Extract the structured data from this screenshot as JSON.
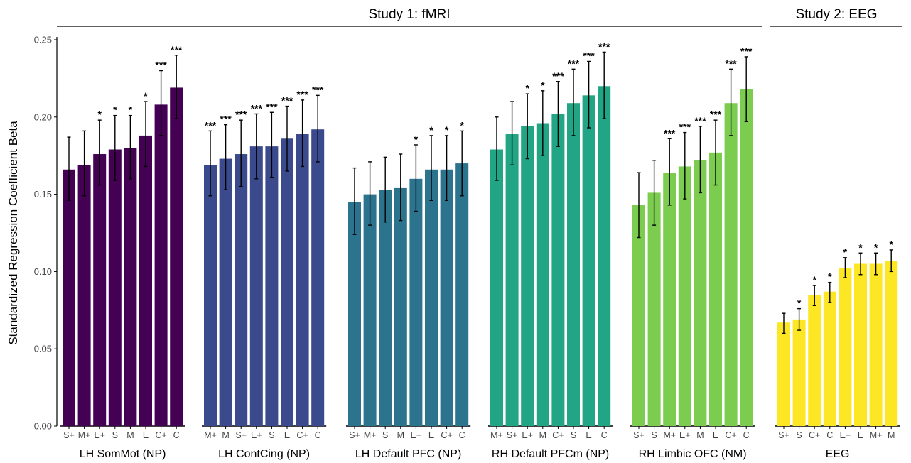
{
  "chart_data": {
    "type": "bar",
    "ylabel": "Standardized Regression Coefficient Beta",
    "ylim": [
      0,
      0.25
    ],
    "yticks": [
      "0.00",
      "0.05",
      "0.10",
      "0.15",
      "0.20",
      "0.25"
    ],
    "grid": false,
    "studies": [
      {
        "label": "Study 1: fMRI",
        "panels": [
          0,
          1,
          2,
          3,
          4
        ]
      },
      {
        "label": "Study 2: EEG",
        "panels": [
          5
        ]
      }
    ],
    "panels": [
      {
        "name": "LH SomMot (NP)",
        "color": "#440154",
        "categories": [
          "S+",
          "M+",
          "E+",
          "S",
          "M",
          "E",
          "C+",
          "C"
        ],
        "values": [
          0.166,
          0.169,
          0.176,
          0.179,
          0.18,
          0.188,
          0.208,
          0.219
        ],
        "err_low": [
          0.146,
          0.149,
          0.156,
          0.159,
          0.16,
          0.168,
          0.188,
          0.199
        ],
        "err_high": [
          0.187,
          0.191,
          0.198,
          0.201,
          0.201,
          0.21,
          0.23,
          0.24
        ],
        "sig": [
          "",
          "",
          "*",
          "*",
          "*",
          "*",
          "***",
          "***"
        ]
      },
      {
        "name": "LH ContCing (NP)",
        "color": "#3b4a8c",
        "categories": [
          "M+",
          "M",
          "S+",
          "E+",
          "S",
          "E",
          "C+",
          "C"
        ],
        "values": [
          0.169,
          0.173,
          0.176,
          0.181,
          0.181,
          0.186,
          0.189,
          0.192
        ],
        "err_low": [
          0.149,
          0.153,
          0.155,
          0.16,
          0.161,
          0.165,
          0.168,
          0.171
        ],
        "err_high": [
          0.191,
          0.195,
          0.198,
          0.202,
          0.203,
          0.207,
          0.211,
          0.214
        ],
        "sig": [
          "***",
          "***",
          "***",
          "***",
          "***",
          "***",
          "***",
          "***"
        ]
      },
      {
        "name": "LH Default PFC (NP)",
        "color": "#2c748e",
        "categories": [
          "S+",
          "M+",
          "S",
          "M",
          "E+",
          "E",
          "C+",
          "C"
        ],
        "values": [
          0.145,
          0.15,
          0.153,
          0.154,
          0.16,
          0.166,
          0.166,
          0.17
        ],
        "err_low": [
          0.124,
          0.13,
          0.132,
          0.133,
          0.139,
          0.146,
          0.146,
          0.149
        ],
        "err_high": [
          0.167,
          0.171,
          0.174,
          0.176,
          0.182,
          0.188,
          0.188,
          0.191
        ],
        "sig": [
          "",
          "",
          "",
          "",
          "*",
          "*",
          "*",
          "*"
        ]
      },
      {
        "name": "RH Default PFCm (NP)",
        "color": "#21a585",
        "categories": [
          "M+",
          "S+",
          "E+",
          "M",
          "C+",
          "S",
          "E",
          "C"
        ],
        "values": [
          0.179,
          0.189,
          0.194,
          0.196,
          0.202,
          0.209,
          0.214,
          0.22
        ],
        "err_low": [
          0.159,
          0.169,
          0.173,
          0.175,
          0.181,
          0.188,
          0.193,
          0.199
        ],
        "err_high": [
          0.2,
          0.21,
          0.215,
          0.217,
          0.223,
          0.231,
          0.236,
          0.242
        ],
        "sig": [
          "",
          "",
          "*",
          "*",
          "***",
          "***",
          "***",
          "***"
        ]
      },
      {
        "name": "RH Limbic OFC (NM)",
        "color": "#7ccd4f",
        "categories": [
          "S+",
          "S",
          "M+",
          "E+",
          "M",
          "E",
          "C+",
          "C"
        ],
        "values": [
          0.143,
          0.151,
          0.164,
          0.168,
          0.172,
          0.177,
          0.209,
          0.218
        ],
        "err_low": [
          0.122,
          0.13,
          0.143,
          0.147,
          0.151,
          0.156,
          0.188,
          0.197
        ],
        "err_high": [
          0.164,
          0.172,
          0.186,
          0.19,
          0.194,
          0.198,
          0.231,
          0.239
        ],
        "sig": [
          "",
          "",
          "***",
          "***",
          "***",
          "***",
          "***",
          "***"
        ]
      },
      {
        "name": "EEG",
        "color": "#fde724",
        "categories": [
          "S+",
          "S",
          "C+",
          "C",
          "E+",
          "E",
          "M+",
          "M"
        ],
        "values": [
          0.067,
          0.069,
          0.085,
          0.087,
          0.102,
          0.105,
          0.105,
          0.107
        ],
        "err_low": [
          0.06,
          0.062,
          0.078,
          0.08,
          0.096,
          0.098,
          0.098,
          0.1
        ],
        "err_high": [
          0.073,
          0.076,
          0.091,
          0.093,
          0.109,
          0.112,
          0.112,
          0.114
        ],
        "sig": [
          "",
          "*",
          "*",
          "*",
          "*",
          "*",
          "*",
          "*"
        ]
      }
    ]
  }
}
